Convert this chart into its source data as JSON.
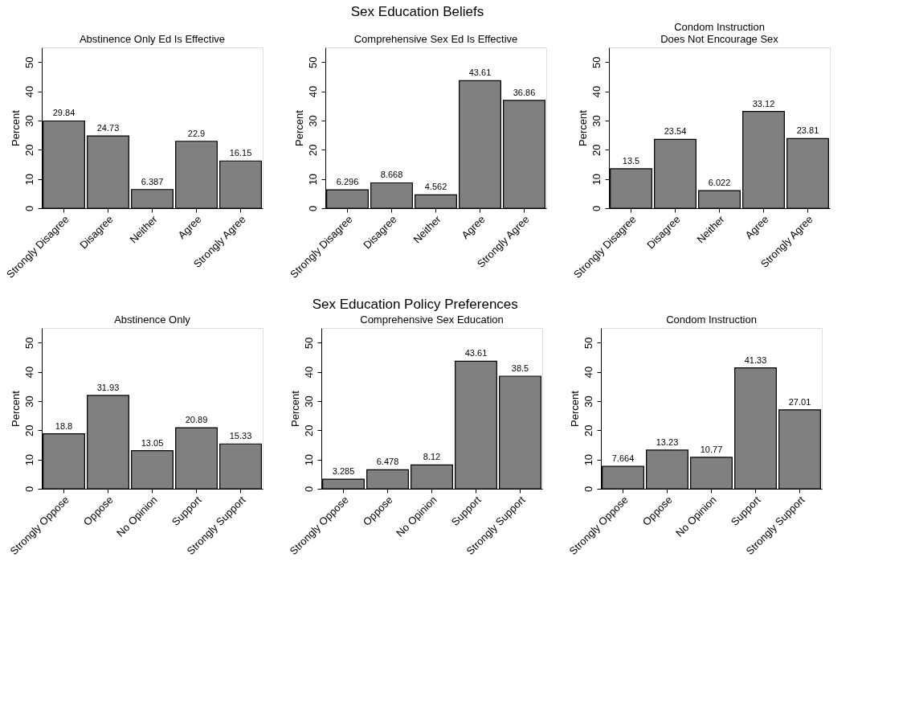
{
  "chart_data": [
    {
      "type": "bar",
      "title": "Abstinence Only Ed Is Effective",
      "annotations": [
        "Sex Education Beliefs"
      ],
      "ylabel": "Percent",
      "categories": [
        "Strongly Disagree",
        "Disagree",
        "Neither",
        "Agree",
        "Strongly Agree"
      ],
      "values": [
        29.84,
        24.73,
        6.387,
        22.9,
        16.15
      ],
      "color": "#808080",
      "ylim": [
        0,
        55
      ],
      "yticks": [
        0,
        10,
        20,
        30,
        40,
        50
      ],
      "data_labels": true,
      "grid": false,
      "legend": false
    },
    {
      "type": "bar",
      "title": "Comprehensive Sex Ed Is Effective",
      "ylabel": "Percent",
      "categories": [
        "Strongly Disagree",
        "Disagree",
        "Neither",
        "Agree",
        "Strongly Agree"
      ],
      "values": [
        6.296,
        8.668,
        4.562,
        43.61,
        36.86
      ],
      "color": "#808080",
      "ylim": [
        0,
        55
      ],
      "yticks": [
        0,
        10,
        20,
        30,
        40,
        50
      ],
      "data_labels": true,
      "grid": false,
      "legend": false
    },
    {
      "type": "bar",
      "title": "Condom Instruction\nDoes Not Encourage Sex",
      "ylabel": "Percent",
      "categories": [
        "Strongly Disagree",
        "Disagree",
        "Neither",
        "Agree",
        "Strongly Agree"
      ],
      "values": [
        13.5,
        23.54,
        6.022,
        33.12,
        23.81
      ],
      "color": "#808080",
      "ylim": [
        0,
        55
      ],
      "yticks": [
        0,
        10,
        20,
        30,
        40,
        50
      ],
      "data_labels": true,
      "grid": false,
      "legend": false
    },
    {
      "type": "bar",
      "title": "Abstinence Only",
      "annotations": [
        "Sex Education Policy Preferences"
      ],
      "ylabel": "Percent",
      "categories": [
        "Strongly Oppose",
        "Oppose",
        "No Opinion",
        "Support",
        "Strongly Support"
      ],
      "values": [
        18.8,
        31.93,
        13.05,
        20.89,
        15.33
      ],
      "color": "#808080",
      "ylim": [
        0,
        55
      ],
      "yticks": [
        0,
        10,
        20,
        30,
        40,
        50
      ],
      "data_labels": true,
      "grid": false,
      "legend": false
    },
    {
      "type": "bar",
      "title": "Comprehensive Sex Education",
      "ylabel": "Percent",
      "categories": [
        "Strongly Oppose",
        "Oppose",
        "No Opinion",
        "Support",
        "Strongly Support"
      ],
      "values": [
        3.285,
        6.478,
        8.12,
        43.61,
        38.5
      ],
      "color": "#808080",
      "ylim": [
        0,
        55
      ],
      "yticks": [
        0,
        10,
        20,
        30,
        40,
        50
      ],
      "data_labels": true,
      "grid": false,
      "legend": false
    },
    {
      "type": "bar",
      "title": "Condom Instruction",
      "ylabel": "Percent",
      "categories": [
        "Strongly Oppose",
        "Oppose",
        "No Opinion",
        "Support",
        "Strongly Support"
      ],
      "values": [
        7.664,
        13.23,
        10.77,
        41.33,
        27.01
      ],
      "color": "#808080",
      "ylim": [
        0,
        55
      ],
      "yticks": [
        0,
        10,
        20,
        30,
        40,
        50
      ],
      "data_labels": true,
      "grid": false,
      "legend": false
    }
  ]
}
